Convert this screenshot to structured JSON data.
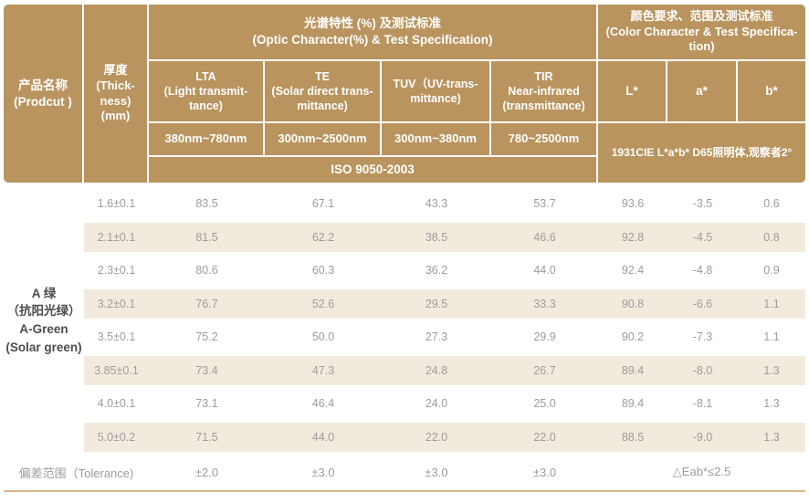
{
  "header": {
    "product": "产品名称\n(Prodcut )",
    "thickness": "厚度\n(Thick-\nness)\n(mm)",
    "optic_group": "光谱特性 (%) 及测试标准\n(Optic Character(%) & Test Specification)",
    "color_group": "颜色要求、范围及测试标准\n(Color Character & Test Specifica-\ntion)",
    "lta": "LTA\n(Light transmit-\ntance)",
    "te": "TE\n(Solar direct trans-\nmittance)",
    "tuv": "TUV（UV-trans-\nmittance)",
    "tir": "TIR\nNear-infrared\n(transmittance)",
    "lstar": "L*",
    "astar": "a*",
    "bstar": "b*",
    "range_lta": "380nm~780nm",
    "range_te": "300nm~2500nm",
    "range_tuv": "300nm~380nm",
    "range_tir": "780~2500nm",
    "iso": "ISO 9050-2003",
    "cie": "1931CIE L*a*b*  D65照明体,观察者2°"
  },
  "body": {
    "product_name": "A 绿\n（抗阳光绿）\nA-Green\n(Solar green)",
    "rows": [
      {
        "thickness": "1.6±0.1",
        "values": [
          "83.5",
          "67.1",
          "43.3",
          "53.7",
          "93.6",
          "-3.5",
          "0.6"
        ]
      },
      {
        "thickness": "2.1±0.1",
        "values": [
          "81.5",
          "62.2",
          "38.5",
          "46.6",
          "92.8",
          "-4.5",
          "0.8"
        ]
      },
      {
        "thickness": "2.3±0.1",
        "values": [
          "80.6",
          "60.3",
          "36.2",
          "44.0",
          "92.4",
          "-4.8",
          "0.9"
        ]
      },
      {
        "thickness": "3.2±0.1",
        "values": [
          "76.7",
          "52.6",
          "29.5",
          "33.3",
          "90.8",
          "-6.6",
          "1.1"
        ]
      },
      {
        "thickness": "3.5±0.1",
        "values": [
          "75.2",
          "50.0",
          "27.3",
          "29.9",
          "90.2",
          "-7.3",
          "1.1"
        ]
      },
      {
        "thickness": "3.85±0.1",
        "values": [
          "73.4",
          "47.3",
          "24.8",
          "26.7",
          "89.4",
          "-8.0",
          "1.3"
        ]
      },
      {
        "thickness": "4.0±0.1",
        "values": [
          "73.1",
          "46.4",
          "24.0",
          "25.0",
          "89.4",
          "-8.1",
          "1.3"
        ]
      },
      {
        "thickness": "5.0±0.2",
        "values": [
          "71.5",
          "44.0",
          "22.0",
          "22.0",
          "88.5",
          "-9.0",
          "1.3"
        ]
      }
    ],
    "tolerance": {
      "label": "偏差范围（Tolerance)",
      "values": [
        "±2.0",
        "±3.0",
        "±3.0",
        "±3.0"
      ],
      "eab": "△Eab*≤2.5"
    }
  },
  "colors": {
    "header_tan": "#b9945e",
    "row_beige": "#f2ebdd",
    "bottom_line": "#d9b787",
    "body_text": "#9c9c9c",
    "product_text": "#4d4d4d"
  }
}
